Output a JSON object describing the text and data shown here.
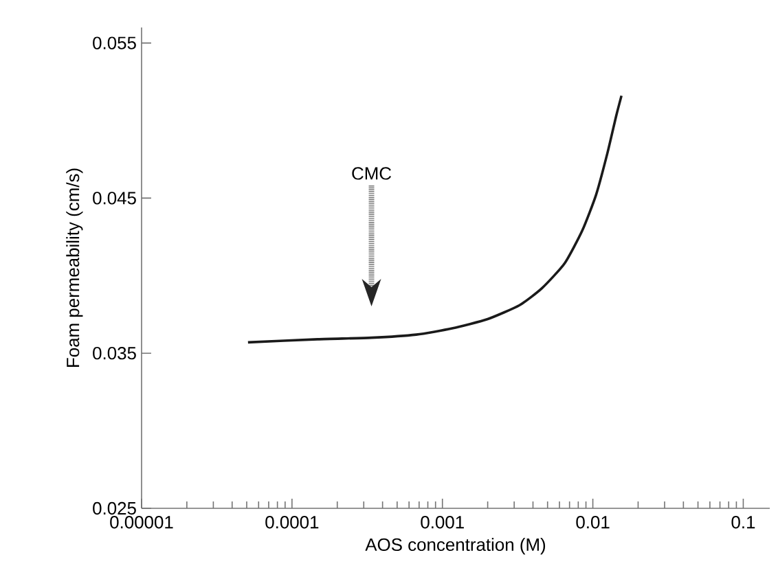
{
  "chart_data": {
    "type": "line",
    "xlabel": "AOS concentration (M)",
    "ylabel": "Foam permeability (cm/s)",
    "log": "x",
    "xlim": [
      1e-05,
      0.15
    ],
    "ylim": [
      0.025,
      0.056
    ],
    "xticks": [
      {
        "value": 1e-05,
        "label": "0.00001"
      },
      {
        "value": 0.0001,
        "label": "0.0001"
      },
      {
        "value": 0.001,
        "label": "0.001"
      },
      {
        "value": 0.01,
        "label": "0.01"
      },
      {
        "value": 0.1,
        "label": "0.1"
      }
    ],
    "yticks": [
      {
        "value": 0.025,
        "label": "0.025"
      },
      {
        "value": 0.035,
        "label": "0.035"
      },
      {
        "value": 0.045,
        "label": "0.045"
      },
      {
        "value": 0.055,
        "label": "0.055"
      }
    ],
    "marker": "none",
    "line_style": "solid",
    "annotations": [
      "CMC"
    ],
    "series": [
      {
        "color": "#1a1a1a",
        "x": [
          5.1e-05,
          0.000148,
          0.000337,
          0.00067,
          0.00116,
          0.002,
          0.00326,
          0.0046,
          0.0065,
          0.0085,
          0.0105,
          0.0125,
          0.0143,
          0.0155
        ],
        "values": [
          0.0357,
          0.0359,
          0.036,
          0.0362,
          0.0366,
          0.0372,
          0.0381,
          0.0392,
          0.0408,
          0.0429,
          0.0452,
          0.0479,
          0.0503,
          0.0516
        ]
      }
    ]
  }
}
